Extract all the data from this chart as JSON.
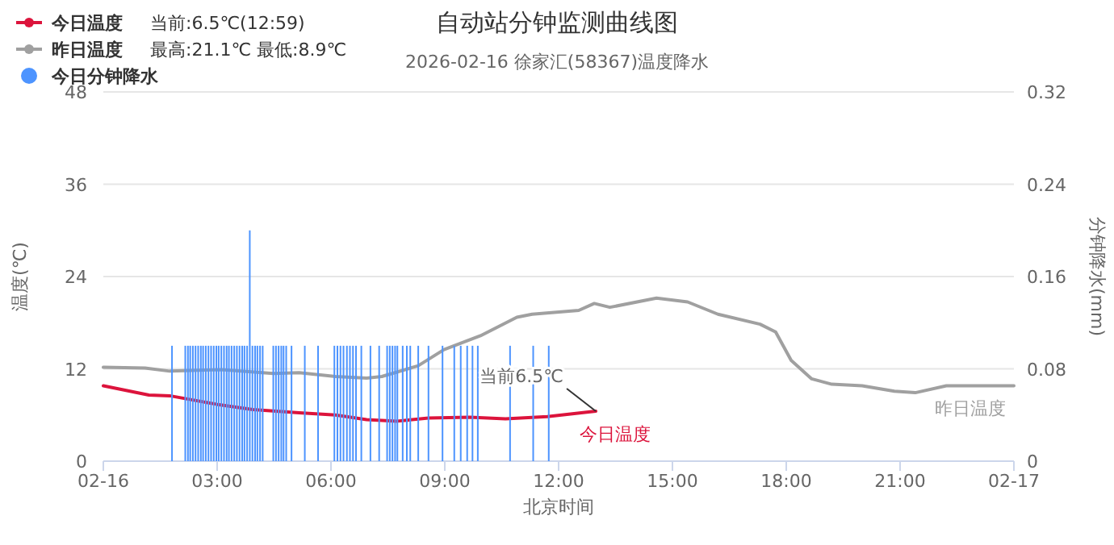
{
  "chart_data": {
    "type": "line",
    "title": "自动站分钟监测曲线图",
    "subtitle": "2026-02-16 徐家汇(58367)温度降水",
    "xlabel": "北京时间",
    "ylabel": "温度(℃)",
    "y2label": "分钟降水(mm)",
    "xlim": [
      0,
      24
    ],
    "xticks": [
      {
        "value": 0,
        "label": "02-16"
      },
      {
        "value": 3,
        "label": "03:00"
      },
      {
        "value": 6,
        "label": "06:00"
      },
      {
        "value": 9,
        "label": "09:00"
      },
      {
        "value": 12,
        "label": "12:00"
      },
      {
        "value": 15,
        "label": "15:00"
      },
      {
        "value": 18,
        "label": "18:00"
      },
      {
        "value": 21,
        "label": "21:00"
      },
      {
        "value": 24,
        "label": "02-17"
      }
    ],
    "ylim": [
      0,
      48
    ],
    "yticks": [
      0,
      12,
      24,
      36,
      48
    ],
    "y2lim": [
      0,
      0.32
    ],
    "y2ticks": [
      0,
      0.08,
      0.16,
      0.24,
      0.32
    ],
    "grid": "y",
    "legend": "top left",
    "series": [
      {
        "name": "今日温度",
        "color": "#dc143c",
        "x": [
          0,
          1.2,
          1.75,
          2.98,
          3.94,
          5.16,
          6.12,
          6.94,
          7.75,
          8.57,
          9.66,
          10.6,
          11.7,
          12.98
        ],
        "values": [
          9.8,
          8.6,
          8.5,
          7.4,
          6.7,
          6.3,
          6.0,
          5.4,
          5.2,
          5.6,
          5.7,
          5.5,
          5.8,
          6.5
        ]
      },
      {
        "name": "昨日温度",
        "color": "#a0a0a0",
        "x": [
          0,
          1.1,
          1.75,
          3.12,
          4.48,
          5.16,
          6.12,
          6.94,
          7.34,
          8.3,
          8.98,
          9.94,
          10.9,
          11.3,
          12.53,
          12.94,
          13.35,
          14.58,
          15.4,
          16.2,
          17.31,
          17.72,
          18.13,
          18.67,
          19.2,
          20.0,
          20.85,
          21.4,
          22.22,
          24
        ],
        "values": [
          12.2,
          12.1,
          11.7,
          11.9,
          11.4,
          11.5,
          11.0,
          10.8,
          11.0,
          12.4,
          14.5,
          16.3,
          18.7,
          19.1,
          19.6,
          20.5,
          20.0,
          21.2,
          20.7,
          19.1,
          17.8,
          16.8,
          13.1,
          10.7,
          10.0,
          9.8,
          9.1,
          8.9,
          9.8,
          9.8
        ]
      },
      {
        "name": "今日分钟降水",
        "type": "bar",
        "axis": "y2",
        "color": "#4d94ff",
        "x": [
          1.81,
          2.16,
          2.23,
          2.29,
          2.36,
          2.43,
          2.5,
          2.57,
          2.63,
          2.7,
          2.77,
          2.84,
          2.91,
          2.98,
          3.04,
          3.11,
          3.18,
          3.25,
          3.31,
          3.38,
          3.45,
          3.52,
          3.59,
          3.66,
          3.72,
          3.79,
          3.86,
          3.93,
          4.0,
          4.06,
          4.13,
          4.2,
          4.48,
          4.55,
          4.62,
          4.69,
          4.75,
          4.82,
          4.96,
          5.31,
          5.66,
          6.09,
          6.17,
          6.25,
          6.33,
          6.42,
          6.5,
          6.58,
          6.66,
          6.8,
          7.04,
          7.27,
          7.48,
          7.55,
          7.62,
          7.69,
          7.75,
          7.89,
          8.0,
          8.09,
          8.3,
          8.57,
          8.94,
          9.25,
          9.42,
          9.59,
          9.73,
          9.87,
          10.72,
          11.33,
          11.74
        ],
        "values": [
          0.1,
          0.1,
          0.1,
          0.1,
          0.1,
          0.1,
          0.1,
          0.1,
          0.1,
          0.1,
          0.1,
          0.1,
          0.1,
          0.1,
          0.1,
          0.1,
          0.1,
          0.1,
          0.1,
          0.1,
          0.1,
          0.1,
          0.1,
          0.1,
          0.1,
          0.1,
          0.2,
          0.1,
          0.1,
          0.1,
          0.1,
          0.1,
          0.1,
          0.1,
          0.1,
          0.1,
          0.1,
          0.1,
          0.1,
          0.1,
          0.1,
          0.1,
          0.1,
          0.1,
          0.1,
          0.1,
          0.1,
          0.1,
          0.1,
          0.1,
          0.1,
          0.1,
          0.1,
          0.1,
          0.1,
          0.1,
          0.1,
          0.1,
          0.1,
          0.1,
          0.1,
          0.1,
          0.1,
          0.1,
          0.1,
          0.1,
          0.1,
          0.1,
          0.1,
          0.1,
          0.1
        ]
      }
    ],
    "annotations": [
      "当前:6.5℃(12:59)",
      "最高:21.1℃ 最低:8.9℃",
      {
        "text": "当前6.5℃",
        "x": 12.98,
        "y": 6.5
      }
    ]
  }
}
